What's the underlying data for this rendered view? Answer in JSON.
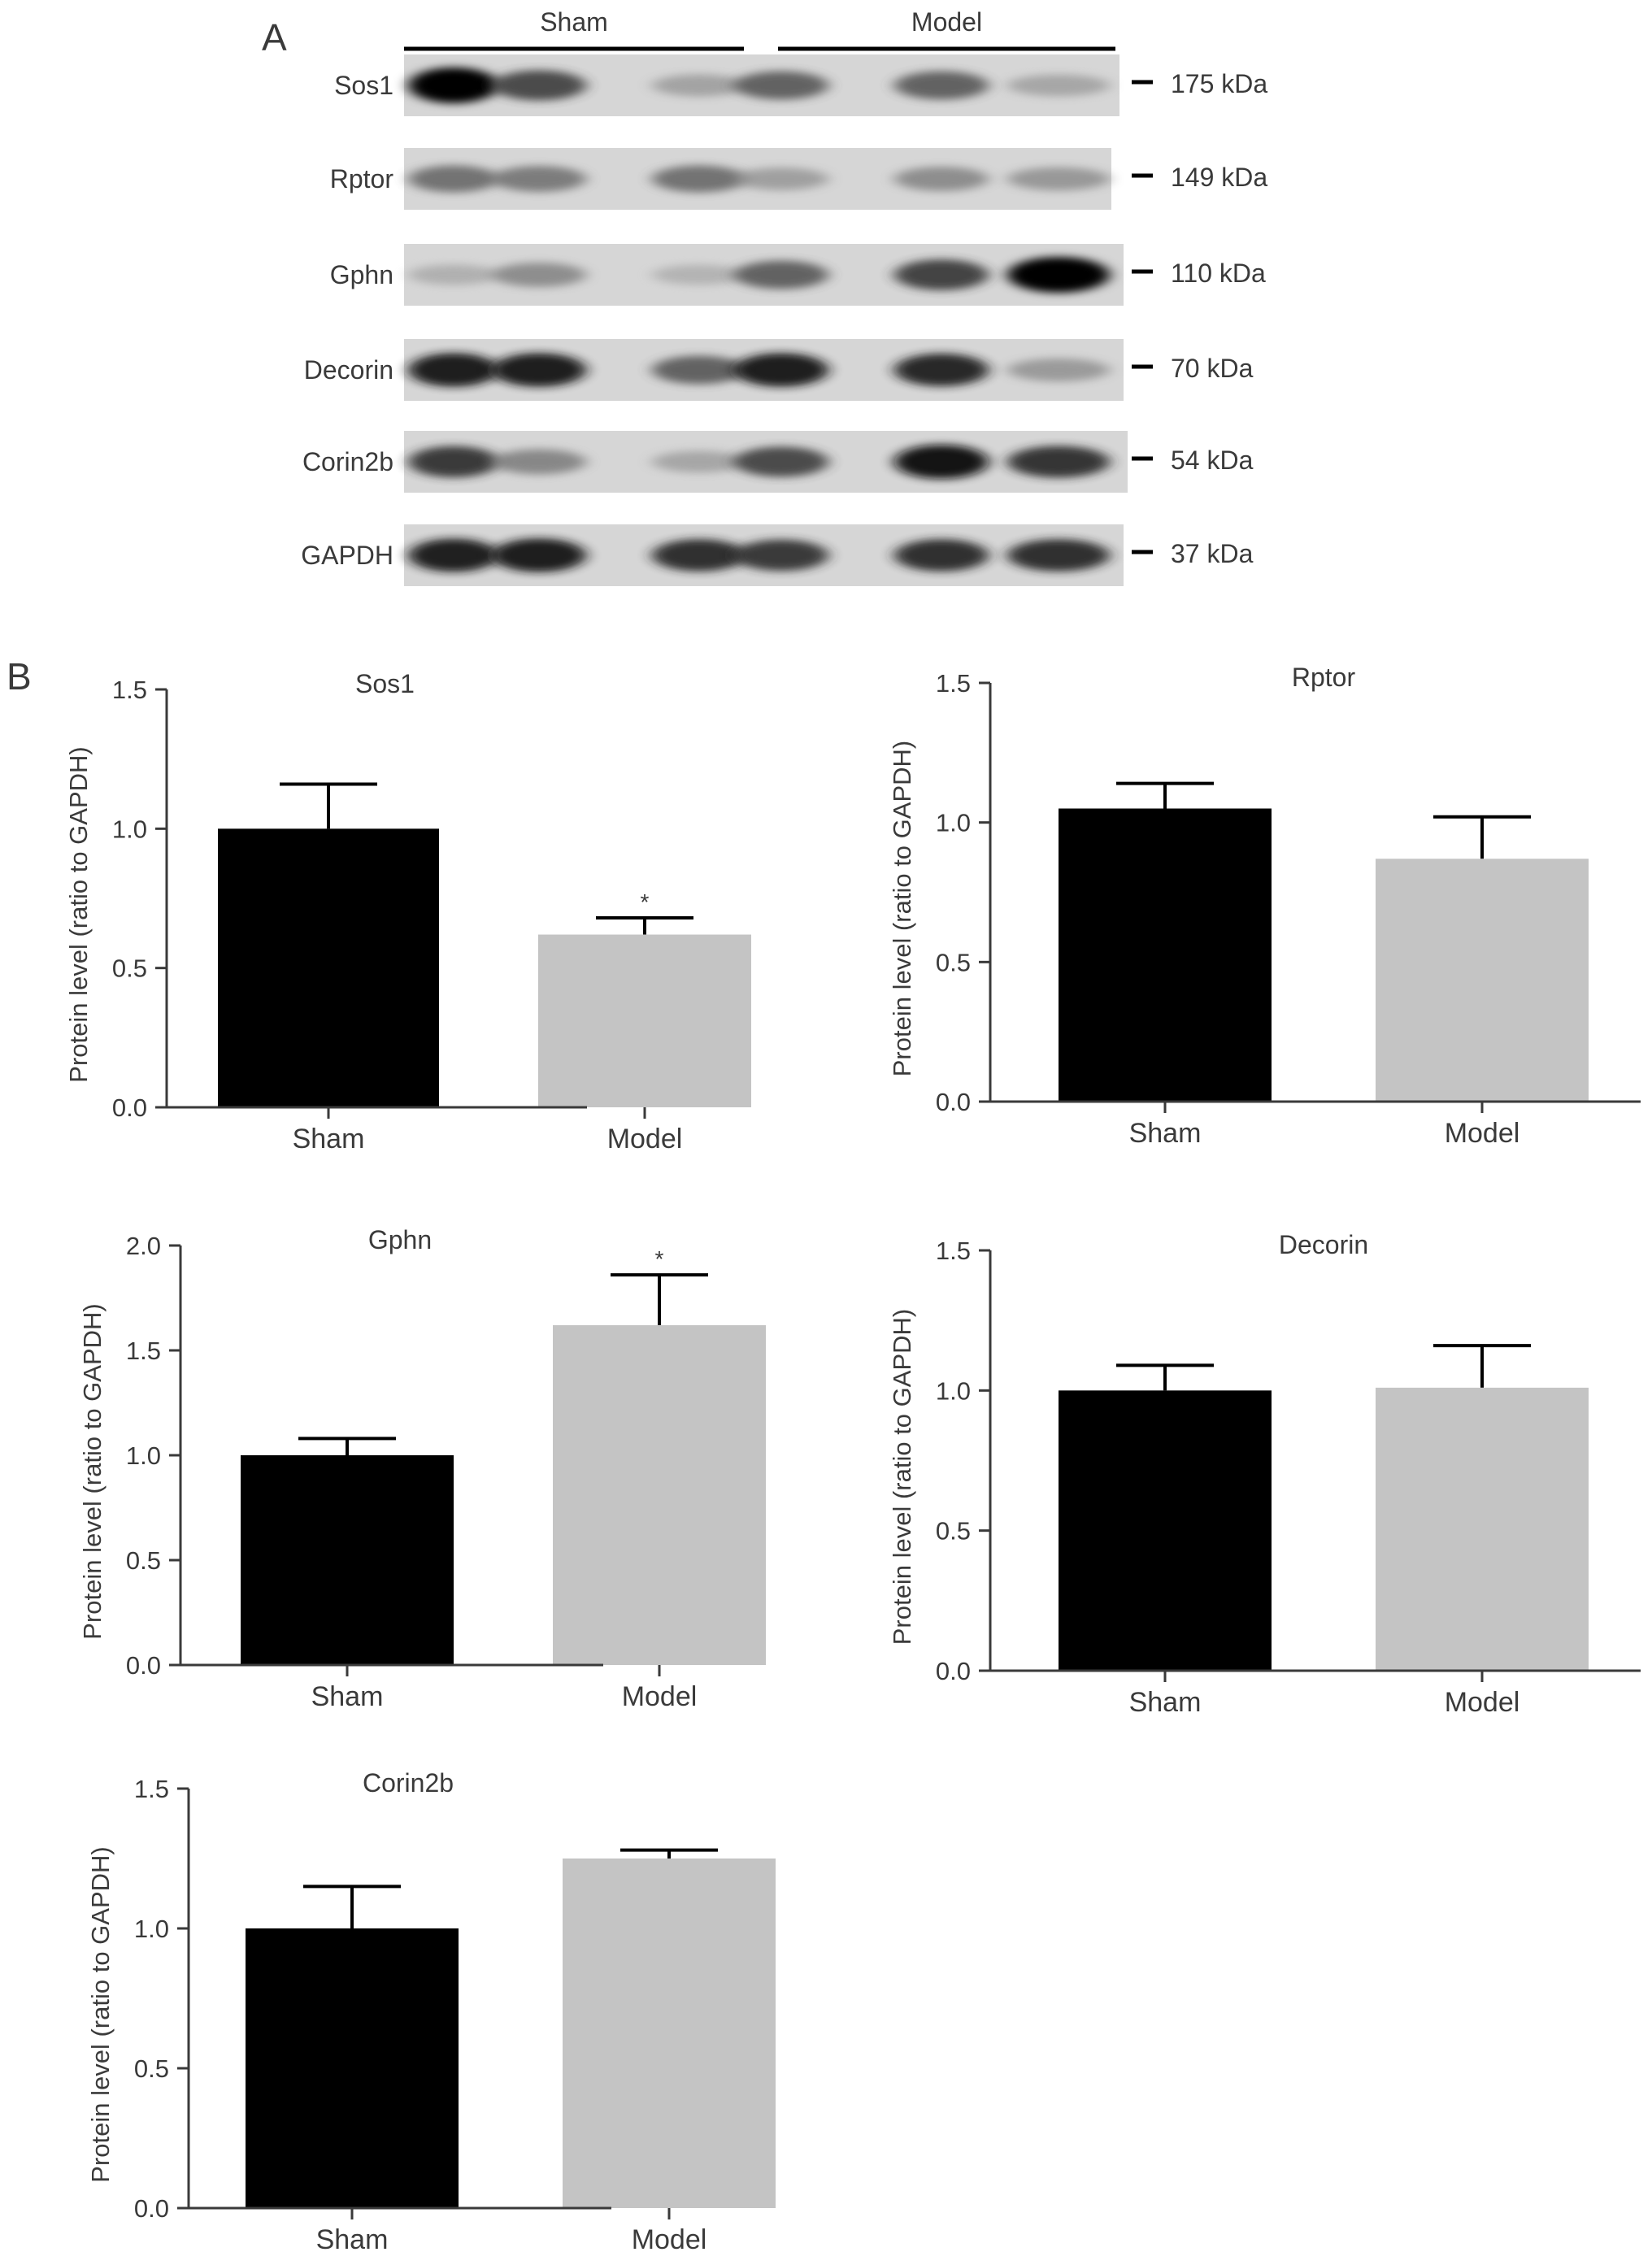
{
  "panel_a": {
    "label": "A",
    "groups": [
      "Sham",
      "Model"
    ],
    "blots": [
      {
        "name": "Sos1",
        "kda": "175 kDa",
        "intensity": [
          1.0,
          0.72,
          0.3,
          0.62,
          0.62,
          0.28
        ]
      },
      {
        "name": "Rptor",
        "kda": "149 kDa",
        "intensity": [
          0.55,
          0.5,
          0.55,
          0.32,
          0.42,
          0.36
        ]
      },
      {
        "name": "Gphn",
        "kda": "110 kDa",
        "intensity": [
          0.22,
          0.42,
          0.2,
          0.62,
          0.75,
          1.0
        ]
      },
      {
        "name": "Decorin",
        "kda": "70 kDa",
        "intensity": [
          0.9,
          0.9,
          0.62,
          0.9,
          0.85,
          0.35
        ]
      },
      {
        "name": "Corin2b",
        "kda": "54 kDa",
        "intensity": [
          0.78,
          0.45,
          0.28,
          0.72,
          0.92,
          0.8
        ]
      },
      {
        "name": "GAPDH",
        "kda": "37 kDa",
        "intensity": [
          0.88,
          0.9,
          0.82,
          0.78,
          0.82,
          0.82
        ]
      }
    ]
  },
  "panel_b": {
    "label": "B"
  },
  "chart_data": [
    {
      "type": "bar",
      "title": "Sos1",
      "ylabel": "Protein level (ratio to GAPDH)",
      "categories": [
        "Sham",
        "Model"
      ],
      "values": [
        1.0,
        0.62
      ],
      "errors": [
        0.16,
        0.06
      ],
      "significance": [
        "",
        "*"
      ],
      "ylim": [
        0,
        1.5
      ],
      "yticks": [
        "0.0",
        "0.5",
        "1.0",
        "1.5"
      ]
    },
    {
      "type": "bar",
      "title": "Rptor",
      "ylabel": "Protein level (ratio to GAPDH)",
      "categories": [
        "Sham",
        "Model"
      ],
      "values": [
        1.05,
        0.87
      ],
      "errors": [
        0.09,
        0.15
      ],
      "significance": [
        "",
        ""
      ],
      "ylim": [
        0,
        1.5
      ],
      "yticks": [
        "0.0",
        "0.5",
        "1.0",
        "1.5"
      ]
    },
    {
      "type": "bar",
      "title": "Gphn",
      "ylabel": "Protein level (ratio to GAPDH)",
      "categories": [
        "Sham",
        "Model"
      ],
      "values": [
        1.0,
        1.62
      ],
      "errors": [
        0.08,
        0.24
      ],
      "significance": [
        "",
        "*"
      ],
      "ylim": [
        0,
        2.0
      ],
      "yticks": [
        "0.0",
        "0.5",
        "1.0",
        "1.5",
        "2.0"
      ]
    },
    {
      "type": "bar",
      "title": "Decorin",
      "ylabel": "Protein level (ratio to GAPDH)",
      "categories": [
        "Sham",
        "Model"
      ],
      "values": [
        1.0,
        1.01
      ],
      "errors": [
        0.09,
        0.15
      ],
      "significance": [
        "",
        ""
      ],
      "ylim": [
        0,
        1.5
      ],
      "yticks": [
        "0.0",
        "0.5",
        "1.0",
        "1.5"
      ]
    },
    {
      "type": "bar",
      "title": "Corin2b",
      "ylabel": "Protein level (ratio to GAPDH)",
      "categories": [
        "Sham",
        "Model"
      ],
      "values": [
        1.0,
        1.25
      ],
      "errors": [
        0.15,
        0.03
      ],
      "significance": [
        "",
        ""
      ],
      "ylim": [
        0,
        1.5
      ],
      "yticks": [
        "0.0",
        "0.5",
        "1.0",
        "1.5"
      ]
    }
  ],
  "colors": {
    "sham": "#000000",
    "model": "#c4c4c4",
    "axis": "#3a3a3a"
  }
}
